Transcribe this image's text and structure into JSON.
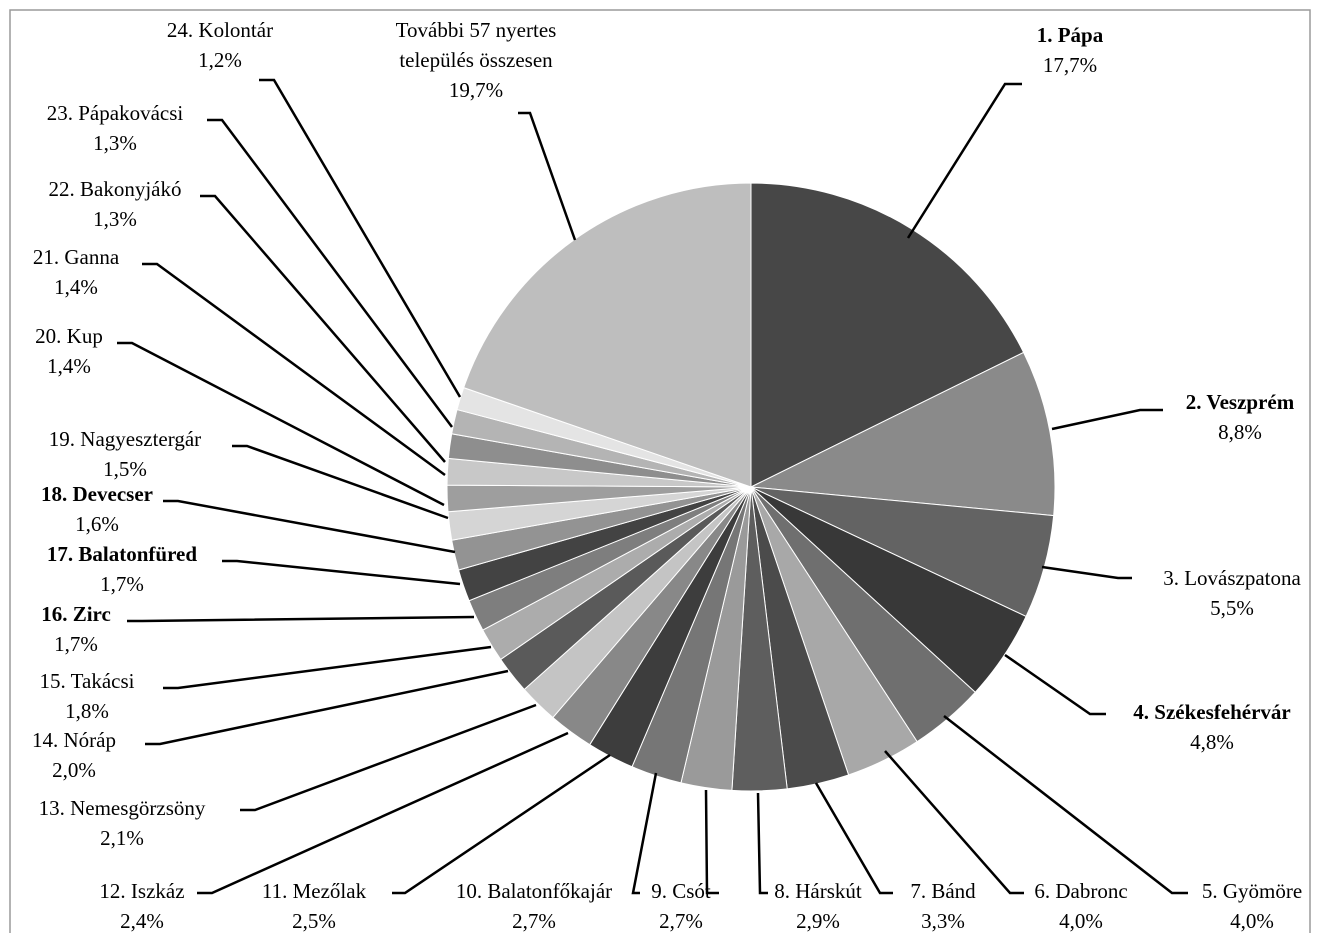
{
  "chart_data": {
    "type": "pie",
    "start_angle_deg": 0,
    "direction": "clockwise",
    "slices": [
      {
        "label": "1. Pápa",
        "value": 17.7,
        "value_label": "17,7%",
        "bold": true,
        "color": "#474747"
      },
      {
        "label": "2. Veszprém",
        "value": 8.8,
        "value_label": "8,8%",
        "bold": true,
        "color": "#8a8a8a"
      },
      {
        "label": "3. Lovászpatona",
        "value": 5.5,
        "value_label": "5,5%",
        "bold": false,
        "color": "#636363"
      },
      {
        "label": "4. Székesfehérvár",
        "value": 4.8,
        "value_label": "4,8%",
        "bold": true,
        "color": "#383838"
      },
      {
        "label": "5. Gyömöre",
        "value": 4.0,
        "value_label": "4,0%",
        "bold": false,
        "color": "#6f6f6f"
      },
      {
        "label": "6. Dabronc",
        "value": 4.0,
        "value_label": "4,0%",
        "bold": false,
        "color": "#a8a8a8"
      },
      {
        "label": "7. Bánd",
        "value": 3.3,
        "value_label": "3,3%",
        "bold": false,
        "color": "#4b4b4b"
      },
      {
        "label": "8. Hárskút",
        "value": 2.9,
        "value_label": "2,9%",
        "bold": false,
        "color": "#5e5e5e"
      },
      {
        "label": "9. Csót",
        "value": 2.7,
        "value_label": "2,7%",
        "bold": false,
        "color": "#9a9a9a"
      },
      {
        "label": "10. Balatonfőkajár",
        "value": 2.7,
        "value_label": "2,7%",
        "bold": false,
        "color": "#767676"
      },
      {
        "label": "11. Mezőlak",
        "value": 2.5,
        "value_label": "2,5%",
        "bold": false,
        "color": "#3d3d3d"
      },
      {
        "label": "12. Iszkáz",
        "value": 2.4,
        "value_label": "2,4%",
        "bold": false,
        "color": "#888888"
      },
      {
        "label": "13. Nemesgörzsöny",
        "value": 2.1,
        "value_label": "2,1%",
        "bold": false,
        "color": "#c4c4c4"
      },
      {
        "label": "14. Nóráp",
        "value": 2.0,
        "value_label": "2,0%",
        "bold": false,
        "color": "#5a5a5a"
      },
      {
        "label": "15. Takácsi",
        "value": 1.8,
        "value_label": "1,8%",
        "bold": false,
        "color": "#acacac"
      },
      {
        "label": "16. Zirc",
        "value": 1.7,
        "value_label": "1,7%",
        "bold": true,
        "color": "#7e7e7e"
      },
      {
        "label": "17. Balatonfüred",
        "value": 1.7,
        "value_label": "1,7%",
        "bold": true,
        "color": "#434343"
      },
      {
        "label": "18. Devecser",
        "value": 1.6,
        "value_label": "1,6%",
        "bold": true,
        "color": "#939393"
      },
      {
        "label": "19. Nagyesztergár",
        "value": 1.5,
        "value_label": "1,5%",
        "bold": false,
        "color": "#d5d5d5"
      },
      {
        "label": "20. Kup",
        "value": 1.4,
        "value_label": "1,4%",
        "bold": false,
        "color": "#9e9e9e"
      },
      {
        "label": "21. Ganna",
        "value": 1.4,
        "value_label": "1,4%",
        "bold": false,
        "color": "#c8c8c8"
      },
      {
        "label": "22. Bakonyjákó",
        "value": 1.3,
        "value_label": "1,3%",
        "bold": false,
        "color": "#8e8e8e"
      },
      {
        "label": "23. Pápakovácsi",
        "value": 1.3,
        "value_label": "1,3%",
        "bold": false,
        "color": "#b4b4b4"
      },
      {
        "label": "24. Kolontár",
        "value": 1.2,
        "value_label": "1,2%",
        "bold": false,
        "color": "#e4e4e4"
      },
      {
        "label": "További 57 nyertes település összesen",
        "label_lines": [
          "További 57 nyertes",
          "település összesen"
        ],
        "value": 19.7,
        "value_label": "19,7%",
        "bold": false,
        "color": "#bebebe"
      }
    ]
  }
}
